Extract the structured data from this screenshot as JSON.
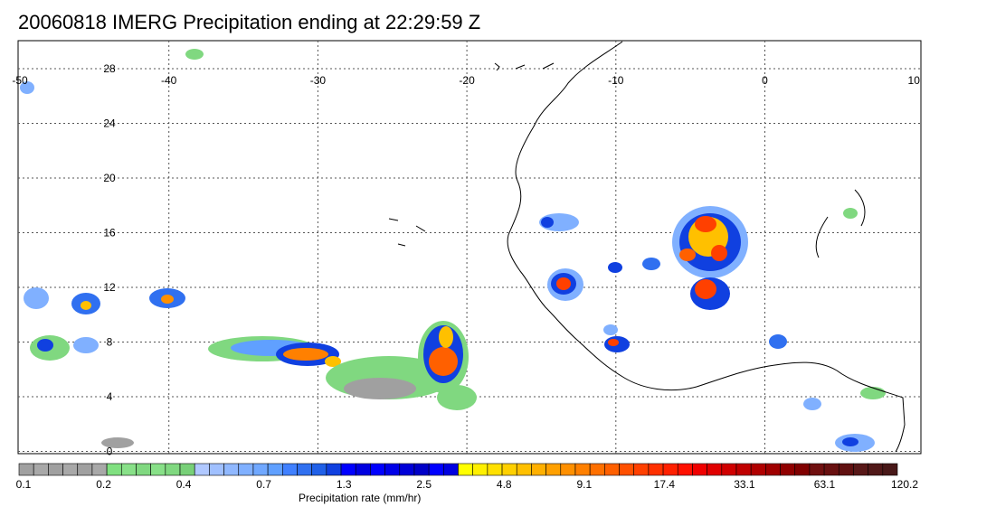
{
  "title": "20060818 IMERG Precipitation ending at 22:29:59 Z",
  "lon_labels": [
    "-50",
    "-40",
    "-30",
    "-20",
    "-10",
    "0",
    "10"
  ],
  "lat_labels": [
    "28",
    "24",
    "20",
    "16",
    "12",
    "8",
    "4",
    "0"
  ],
  "colorbar": {
    "label": "Precipitation rate (mm/hr)",
    "ticks": [
      "0.1",
      "0.2",
      "0.4",
      "0.7",
      "1.3",
      "2.5",
      "4.8",
      "9.1",
      "17.4",
      "33.1",
      "63.1",
      "120.2"
    ],
    "colors": [
      "#a0a0a0",
      "#a8a8a8",
      "#a0a0a0",
      "#a8a8a8",
      "#a0a0a0",
      "#a8a8a8",
      "#80e080",
      "#88e088",
      "#80d880",
      "#88e088",
      "#80d880",
      "#78d078",
      "#b0c8ff",
      "#a0c0ff",
      "#90b8ff",
      "#80b0ff",
      "#70a8ff",
      "#60a0ff",
      "#4080ff",
      "#3070f0",
      "#2060e8",
      "#1040e0",
      "#0000ff",
      "#0000e0",
      "#0000ff",
      "#0000e8",
      "#0000d8",
      "#0000c8",
      "#0000ff",
      "#0000e0",
      "#ffff00",
      "#fff000",
      "#ffe000",
      "#ffd000",
      "#ffc000",
      "#ffb000",
      "#ffa000",
      "#ff9000",
      "#ff8000",
      "#ff7000",
      "#ff6000",
      "#ff5000",
      "#ff4000",
      "#ff3000",
      "#ff2000",
      "#ff1000",
      "#f00000",
      "#e00000",
      "#d00000",
      "#c00000",
      "#b00000",
      "#a00000",
      "#900000",
      "#800000",
      "#701010",
      "#681010",
      "#601010",
      "#581818",
      "#501818",
      "#481818"
    ]
  }
}
